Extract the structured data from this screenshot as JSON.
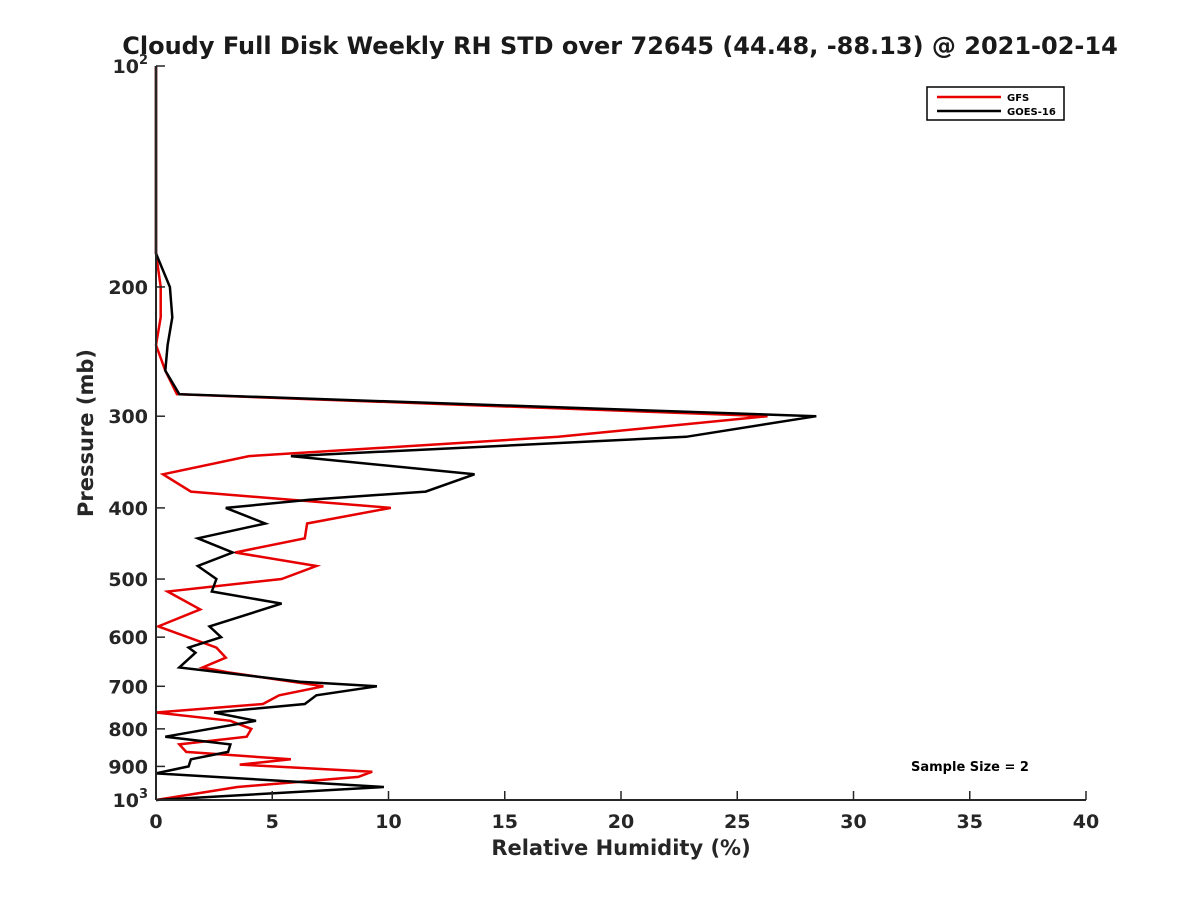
{
  "chart_data": {
    "type": "line",
    "title": "Cloudy Full Disk Weekly RH STD over 72645 (44.48, -88.13) @ 2021-02-14",
    "xlabel": "Relative Humidity (%)",
    "ylabel": "Pressure (mb)",
    "xlim": [
      0,
      40
    ],
    "ylim": [
      100,
      1000
    ],
    "y_scale": "log",
    "y_reversed": true,
    "grid": false,
    "legend_position": "top-right",
    "x_ticks": [
      0,
      5,
      10,
      15,
      20,
      25,
      30,
      35,
      40
    ],
    "y_ticks": [
      {
        "value": 100,
        "base": "10",
        "exp": "2"
      },
      {
        "value": 200,
        "label": "200"
      },
      {
        "value": 300,
        "label": "300"
      },
      {
        "value": 400,
        "label": "400"
      },
      {
        "value": 500,
        "label": "500"
      },
      {
        "value": 600,
        "label": "600"
      },
      {
        "value": 700,
        "label": "700"
      },
      {
        "value": 800,
        "label": "800"
      },
      {
        "value": 900,
        "label": "900"
      },
      {
        "value": 1000,
        "base": "10",
        "exp": "3"
      }
    ],
    "series": [
      {
        "name": "GFS",
        "color": "#e60000",
        "points": [
          [
            0.0,
            100
          ],
          [
            0.0,
            180
          ],
          [
            0.2,
            200
          ],
          [
            0.2,
            220
          ],
          [
            0.0,
            240
          ],
          [
            0.4,
            260
          ],
          [
            0.9,
            280
          ],
          [
            26.3,
            300
          ],
          [
            17.3,
            320
          ],
          [
            4.0,
            340
          ],
          [
            0.3,
            360
          ],
          [
            1.5,
            380
          ],
          [
            10.1,
            400
          ],
          [
            6.5,
            420
          ],
          [
            6.4,
            440
          ],
          [
            3.4,
            460
          ],
          [
            6.9,
            480
          ],
          [
            5.4,
            500
          ],
          [
            0.5,
            520
          ],
          [
            1.9,
            550
          ],
          [
            0.1,
            580
          ],
          [
            2.6,
            620
          ],
          [
            3.0,
            640
          ],
          [
            2.0,
            660
          ],
          [
            3.1,
            670
          ],
          [
            7.2,
            700
          ],
          [
            5.3,
            720
          ],
          [
            4.6,
            740
          ],
          [
            0.0,
            760
          ],
          [
            3.2,
            780
          ],
          [
            4.1,
            800
          ],
          [
            3.9,
            820
          ],
          [
            1.0,
            840
          ],
          [
            1.3,
            860
          ],
          [
            5.8,
            880
          ],
          [
            3.6,
            895
          ],
          [
            9.3,
            915
          ],
          [
            8.7,
            930
          ],
          [
            3.5,
            960
          ],
          [
            0.0,
            1000
          ]
        ]
      },
      {
        "name": "GOES-16",
        "color": "#000000",
        "points": [
          [
            0.0,
            100
          ],
          [
            0.0,
            180
          ],
          [
            0.6,
            200
          ],
          [
            0.7,
            220
          ],
          [
            0.5,
            240
          ],
          [
            0.4,
            260
          ],
          [
            1.0,
            280
          ],
          [
            28.4,
            300
          ],
          [
            22.8,
            320
          ],
          [
            5.8,
            340
          ],
          [
            13.7,
            360
          ],
          [
            11.6,
            380
          ],
          [
            6.6,
            390
          ],
          [
            3.0,
            400
          ],
          [
            4.7,
            420
          ],
          [
            1.8,
            440
          ],
          [
            3.3,
            460
          ],
          [
            1.8,
            480
          ],
          [
            2.6,
            500
          ],
          [
            2.4,
            520
          ],
          [
            5.4,
            540
          ],
          [
            2.3,
            580
          ],
          [
            2.8,
            600
          ],
          [
            1.4,
            620
          ],
          [
            1.7,
            630
          ],
          [
            1.0,
            660
          ],
          [
            6.2,
            690
          ],
          [
            9.5,
            700
          ],
          [
            6.9,
            720
          ],
          [
            6.4,
            740
          ],
          [
            2.5,
            760
          ],
          [
            4.3,
            780
          ],
          [
            0.4,
            820
          ],
          [
            3.2,
            840
          ],
          [
            3.1,
            860
          ],
          [
            1.5,
            880
          ],
          [
            1.4,
            900
          ],
          [
            0.0,
            920
          ],
          [
            9.8,
            960
          ],
          [
            0.0,
            1000
          ]
        ]
      }
    ],
    "annotations": [
      "Sample Size = 2"
    ]
  }
}
